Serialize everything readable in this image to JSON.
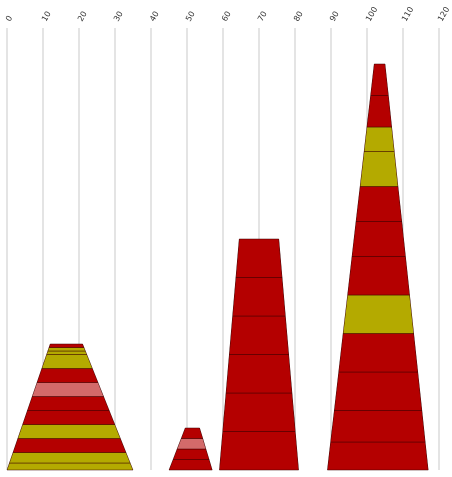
{
  "chart_data": {
    "type": "bar",
    "title": "",
    "xlabel": "",
    "ylabel": "",
    "xlim": [
      0,
      120
    ],
    "x_ticks": [
      "0",
      "10",
      "20",
      "30",
      "40",
      "50",
      "60",
      "70",
      "80",
      "90",
      "100",
      "110",
      "120"
    ],
    "grid": true,
    "colors": {
      "primary": "#b40000",
      "secondary": "#b4aa00",
      "highlight": "#d36a6a"
    },
    "stacks": [
      {
        "left_bottom": 0,
        "right_bottom": 35,
        "left_top": 12,
        "right_top": 21,
        "segments": [
          {
            "color": "secondary",
            "height": 2
          },
          {
            "color": "secondary",
            "height": 3
          },
          {
            "color": "primary",
            "height": 4
          },
          {
            "color": "secondary",
            "height": 4
          },
          {
            "color": "primary",
            "height": 4
          },
          {
            "color": "primary",
            "height": 4
          },
          {
            "color": "highlight",
            "height": 4
          },
          {
            "color": "primary",
            "height": 4
          },
          {
            "color": "secondary",
            "height": 4
          },
          {
            "color": "secondary",
            "height": 1
          },
          {
            "color": "secondary",
            "height": 1
          },
          {
            "color": "primary",
            "height": 1
          }
        ]
      },
      {
        "left_bottom": 45,
        "right_bottom": 57,
        "left_top": 49.5,
        "right_top": 53.5,
        "segments": [
          {
            "color": "primary",
            "height": 3
          },
          {
            "color": "primary",
            "height": 3
          },
          {
            "color": "highlight",
            "height": 3
          },
          {
            "color": "primary",
            "height": 3
          }
        ]
      },
      {
        "left_bottom": 59,
        "right_bottom": 81,
        "left_top": 64.5,
        "right_top": 75.5,
        "segments": [
          {
            "color": "primary",
            "height": 11
          },
          {
            "color": "primary",
            "height": 11
          },
          {
            "color": "primary",
            "height": 11
          },
          {
            "color": "primary",
            "height": 11
          },
          {
            "color": "primary",
            "height": 11
          },
          {
            "color": "primary",
            "height": 11
          }
        ]
      },
      {
        "left_bottom": 89,
        "right_bottom": 117,
        "left_top": 102,
        "right_top": 105,
        "segments": [
          {
            "color": "primary",
            "height": 8
          },
          {
            "color": "primary",
            "height": 9
          },
          {
            "color": "primary",
            "height": 11
          },
          {
            "color": "primary",
            "height": 11
          },
          {
            "color": "secondary",
            "height": 11
          },
          {
            "color": "primary",
            "height": 11
          },
          {
            "color": "primary",
            "height": 10
          },
          {
            "color": "primary",
            "height": 10
          },
          {
            "color": "secondary",
            "height": 10
          },
          {
            "color": "secondary",
            "height": 7
          },
          {
            "color": "primary",
            "height": 9
          },
          {
            "color": "primary",
            "height": 9
          }
        ]
      }
    ]
  }
}
